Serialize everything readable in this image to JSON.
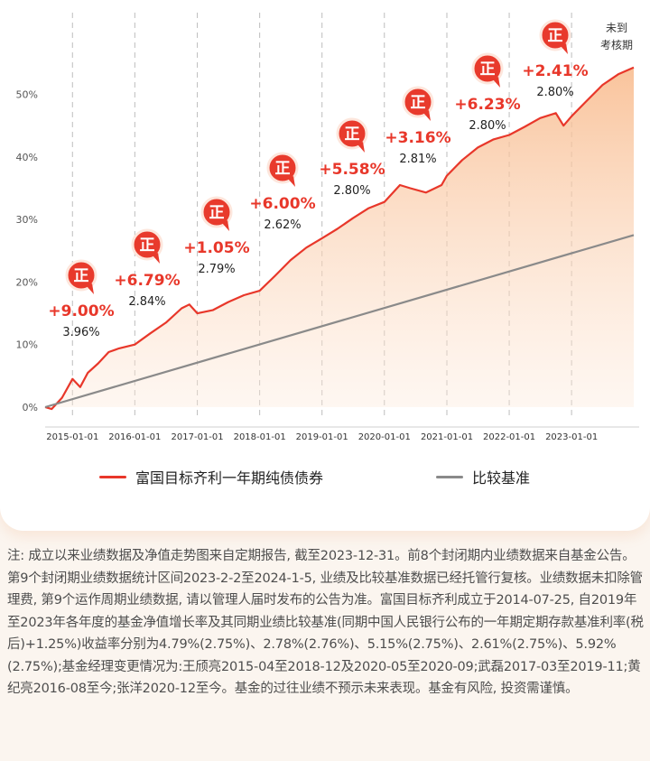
{
  "chart_data": {
    "type": "area",
    "y_axis": {
      "ticks": [
        "0%",
        "10%",
        "20%",
        "30%",
        "40%",
        "50%"
      ],
      "min": 0,
      "max": 55
    },
    "x_axis": {
      "ticks": [
        "2015-01-01",
        "2016-01-01",
        "2017-01-01",
        "2018-01-01",
        "2019-01-01",
        "2020-01-01",
        "2021-01-01",
        "2022-01-01",
        "2023-01-01"
      ]
    },
    "series": [
      {
        "name": "富国目标齐利一年期纯债债券",
        "color": "#e8372a",
        "x": [
          "2014-07-25",
          "2014-09-01",
          "2014-11-01",
          "2015-01-01",
          "2015-02-15",
          "2015-04-01",
          "2015-06-01",
          "2015-08-01",
          "2015-10-01",
          "2016-01-01",
          "2016-04-01",
          "2016-07-01",
          "2016-10-01",
          "2016-11-15",
          "2017-01-01",
          "2017-04-01",
          "2017-07-01",
          "2017-10-01",
          "2018-01-01",
          "2018-04-01",
          "2018-07-01",
          "2018-10-01",
          "2019-01-01",
          "2019-04-01",
          "2019-07-01",
          "2019-10-01",
          "2020-01-01",
          "2020-04-01",
          "2020-06-01",
          "2020-09-01",
          "2020-12-01",
          "2021-01-01",
          "2021-04-01",
          "2021-07-01",
          "2021-10-01",
          "2022-01-01",
          "2022-04-01",
          "2022-07-01",
          "2022-10-01",
          "2022-11-15",
          "2023-01-01",
          "2023-04-01",
          "2023-07-01",
          "2023-10-01",
          "2023-12-31"
        ],
        "values": [
          0.0,
          -0.3,
          1.5,
          4.5,
          3.2,
          5.5,
          7.0,
          8.8,
          9.4,
          10.0,
          11.8,
          13.5,
          15.8,
          16.4,
          15.0,
          15.5,
          16.8,
          17.9,
          18.6,
          21.0,
          23.5,
          25.5,
          27.0,
          28.5,
          30.2,
          31.8,
          32.8,
          35.5,
          35.0,
          34.3,
          35.5,
          37.0,
          39.5,
          41.5,
          42.8,
          43.5,
          44.8,
          46.2,
          47.0,
          45.0,
          46.5,
          49.0,
          51.5,
          53.2,
          54.3
        ]
      },
      {
        "name": "比较基准",
        "color": "#8a8a8a",
        "x": [
          "2014-07-25",
          "2023-12-31"
        ],
        "values": [
          0.0,
          27.5
        ]
      }
    ],
    "annotations": [
      {
        "badge": "正",
        "gain": "+9.00%",
        "benchmark": "3.96%"
      },
      {
        "badge": "正",
        "gain": "+6.79%",
        "benchmark": "2.84%"
      },
      {
        "badge": "正",
        "gain": "+1.05%",
        "benchmark": "2.79%"
      },
      {
        "badge": "正",
        "gain": "+6.00%",
        "benchmark": "2.62%"
      },
      {
        "badge": "正",
        "gain": "+5.58%",
        "benchmark": "2.80%"
      },
      {
        "badge": "正",
        "gain": "+3.16%",
        "benchmark": "2.81%"
      },
      {
        "badge": "正",
        "gain": "+6.23%",
        "benchmark": "2.80%"
      },
      {
        "badge": "正",
        "gain": "+2.41%",
        "benchmark": "2.80%"
      }
    ],
    "end_note": [
      "未到",
      "考核期"
    ]
  },
  "legend": {
    "fund": "富国目标齐利一年期纯债债券",
    "benchmark": "比较基准"
  },
  "footnote": "注: 成立以来业绩数据及净值走势图来自定期报告, 截至2023-12-31。前8个封闭期内业绩数据来自基金公告。第9个封闭期业绩数据统计区间2023-2-2至2024-1-5, 业绩及比较基准数据已经托管行复核。业绩数据未扣除管理费, 第9个运作周期业绩数据, 请以管理人届时发布的公告为准。富国目标齐利成立于2014-07-25, 自2019年至2023年各年度的基金净值增长率及其同期业绩比较基准(同期中国人民银行公布的一年期定期存款基准利率(税后)+1.25%)收益率分别为4.79%(2.75%)、2.78%(2.76%)、5.15%(2.75%)、2.61%(2.75%)、5.92%(2.75%);基金经理变更情况为:王颀亮2015-04至2018-12及2020-05至2020-09;武磊2017-03至2019-11;黄纪亮2016-08至今;张洋2020-12至今。基金的过往业绩不预示未来表现。基金有风险, 投资需谨慎。"
}
